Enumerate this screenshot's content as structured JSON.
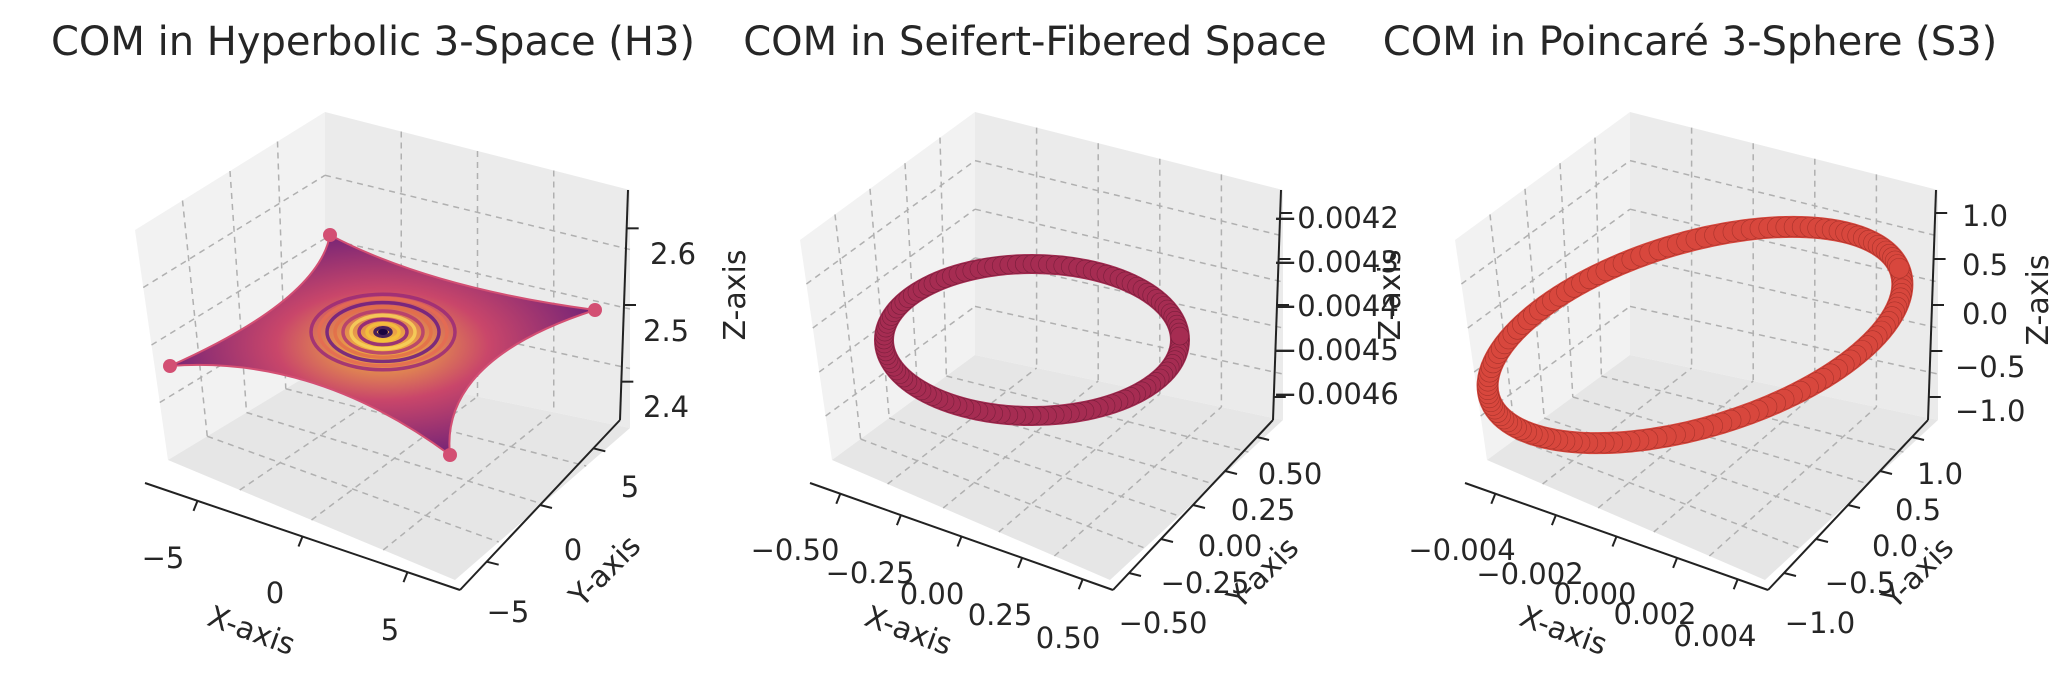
{
  "chart_data": [
    {
      "type": "scatter3d",
      "title": "COM in Hyperbolic 3-Space (H3)",
      "xlabel": "X-axis",
      "ylabel": "Y-axis",
      "zlabel": "Z-axis",
      "x_ticks": [
        "−5",
        "0",
        "5"
      ],
      "y_ticks": [
        "−5",
        "0",
        "5"
      ],
      "z_ticks": [
        "2.4",
        "2.5",
        "2.6"
      ],
      "xlim": [
        -7,
        7
      ],
      "ylim": [
        -7,
        7
      ],
      "zlim": [
        2.35,
        2.65
      ],
      "grid": true,
      "colormap": "plasma",
      "shape": "four-pointed star surface with concentric ripples",
      "center": [
        0,
        0,
        2.5
      ],
      "x_extent": [
        -6.5,
        6.5
      ],
      "y_extent": [
        -6.5,
        6.5
      ]
    },
    {
      "type": "scatter3d",
      "title": "COM in Seifert-Fibered Space",
      "xlabel": "X-axis",
      "ylabel": "Y-axis",
      "zlabel": "Z-axis",
      "x_ticks": [
        "−0.50",
        "−0.25",
        "0.00",
        "0.25",
        "0.50"
      ],
      "y_ticks": [
        "−0.50",
        "−0.25",
        "0.00",
        "0.25",
        "0.50"
      ],
      "z_ticks": [
        "−0.0042",
        "−0.0043",
        "−0.0044",
        "−0.0045",
        "−0.0046"
      ],
      "xlim": [
        -0.55,
        0.55
      ],
      "ylim": [
        -0.55,
        0.55
      ],
      "zlim": [
        -0.00465,
        -0.00415
      ],
      "grid": true,
      "color": "#a62c52",
      "shape": "circle",
      "radius": 0.5,
      "z": -0.0044
    },
    {
      "type": "scatter3d",
      "title": "COM in Poincaré 3-Sphere (S3)",
      "xlabel": "X-axis",
      "ylabel": "Y-axis",
      "zlabel": "Z-axis",
      "x_ticks": [
        "−0.004",
        "−0.002",
        "0.000",
        "0.002",
        "0.004"
      ],
      "y_ticks": [
        "−1.0",
        "−0.5",
        "0.0",
        "0.5",
        "1.0"
      ],
      "z_ticks": [
        "−1.0",
        "−0.5",
        "0.0",
        "0.5",
        "1.0"
      ],
      "xlim": [
        -0.0045,
        0.0045
      ],
      "ylim": [
        -1.1,
        1.1
      ],
      "zlim": [
        -1.1,
        1.1
      ],
      "grid": true,
      "color": "#d8473d",
      "shape": "tilted ellipse (great circle)",
      "x": 0,
      "y_range": [
        -1,
        1
      ],
      "z_range": [
        -1,
        1
      ]
    }
  ]
}
